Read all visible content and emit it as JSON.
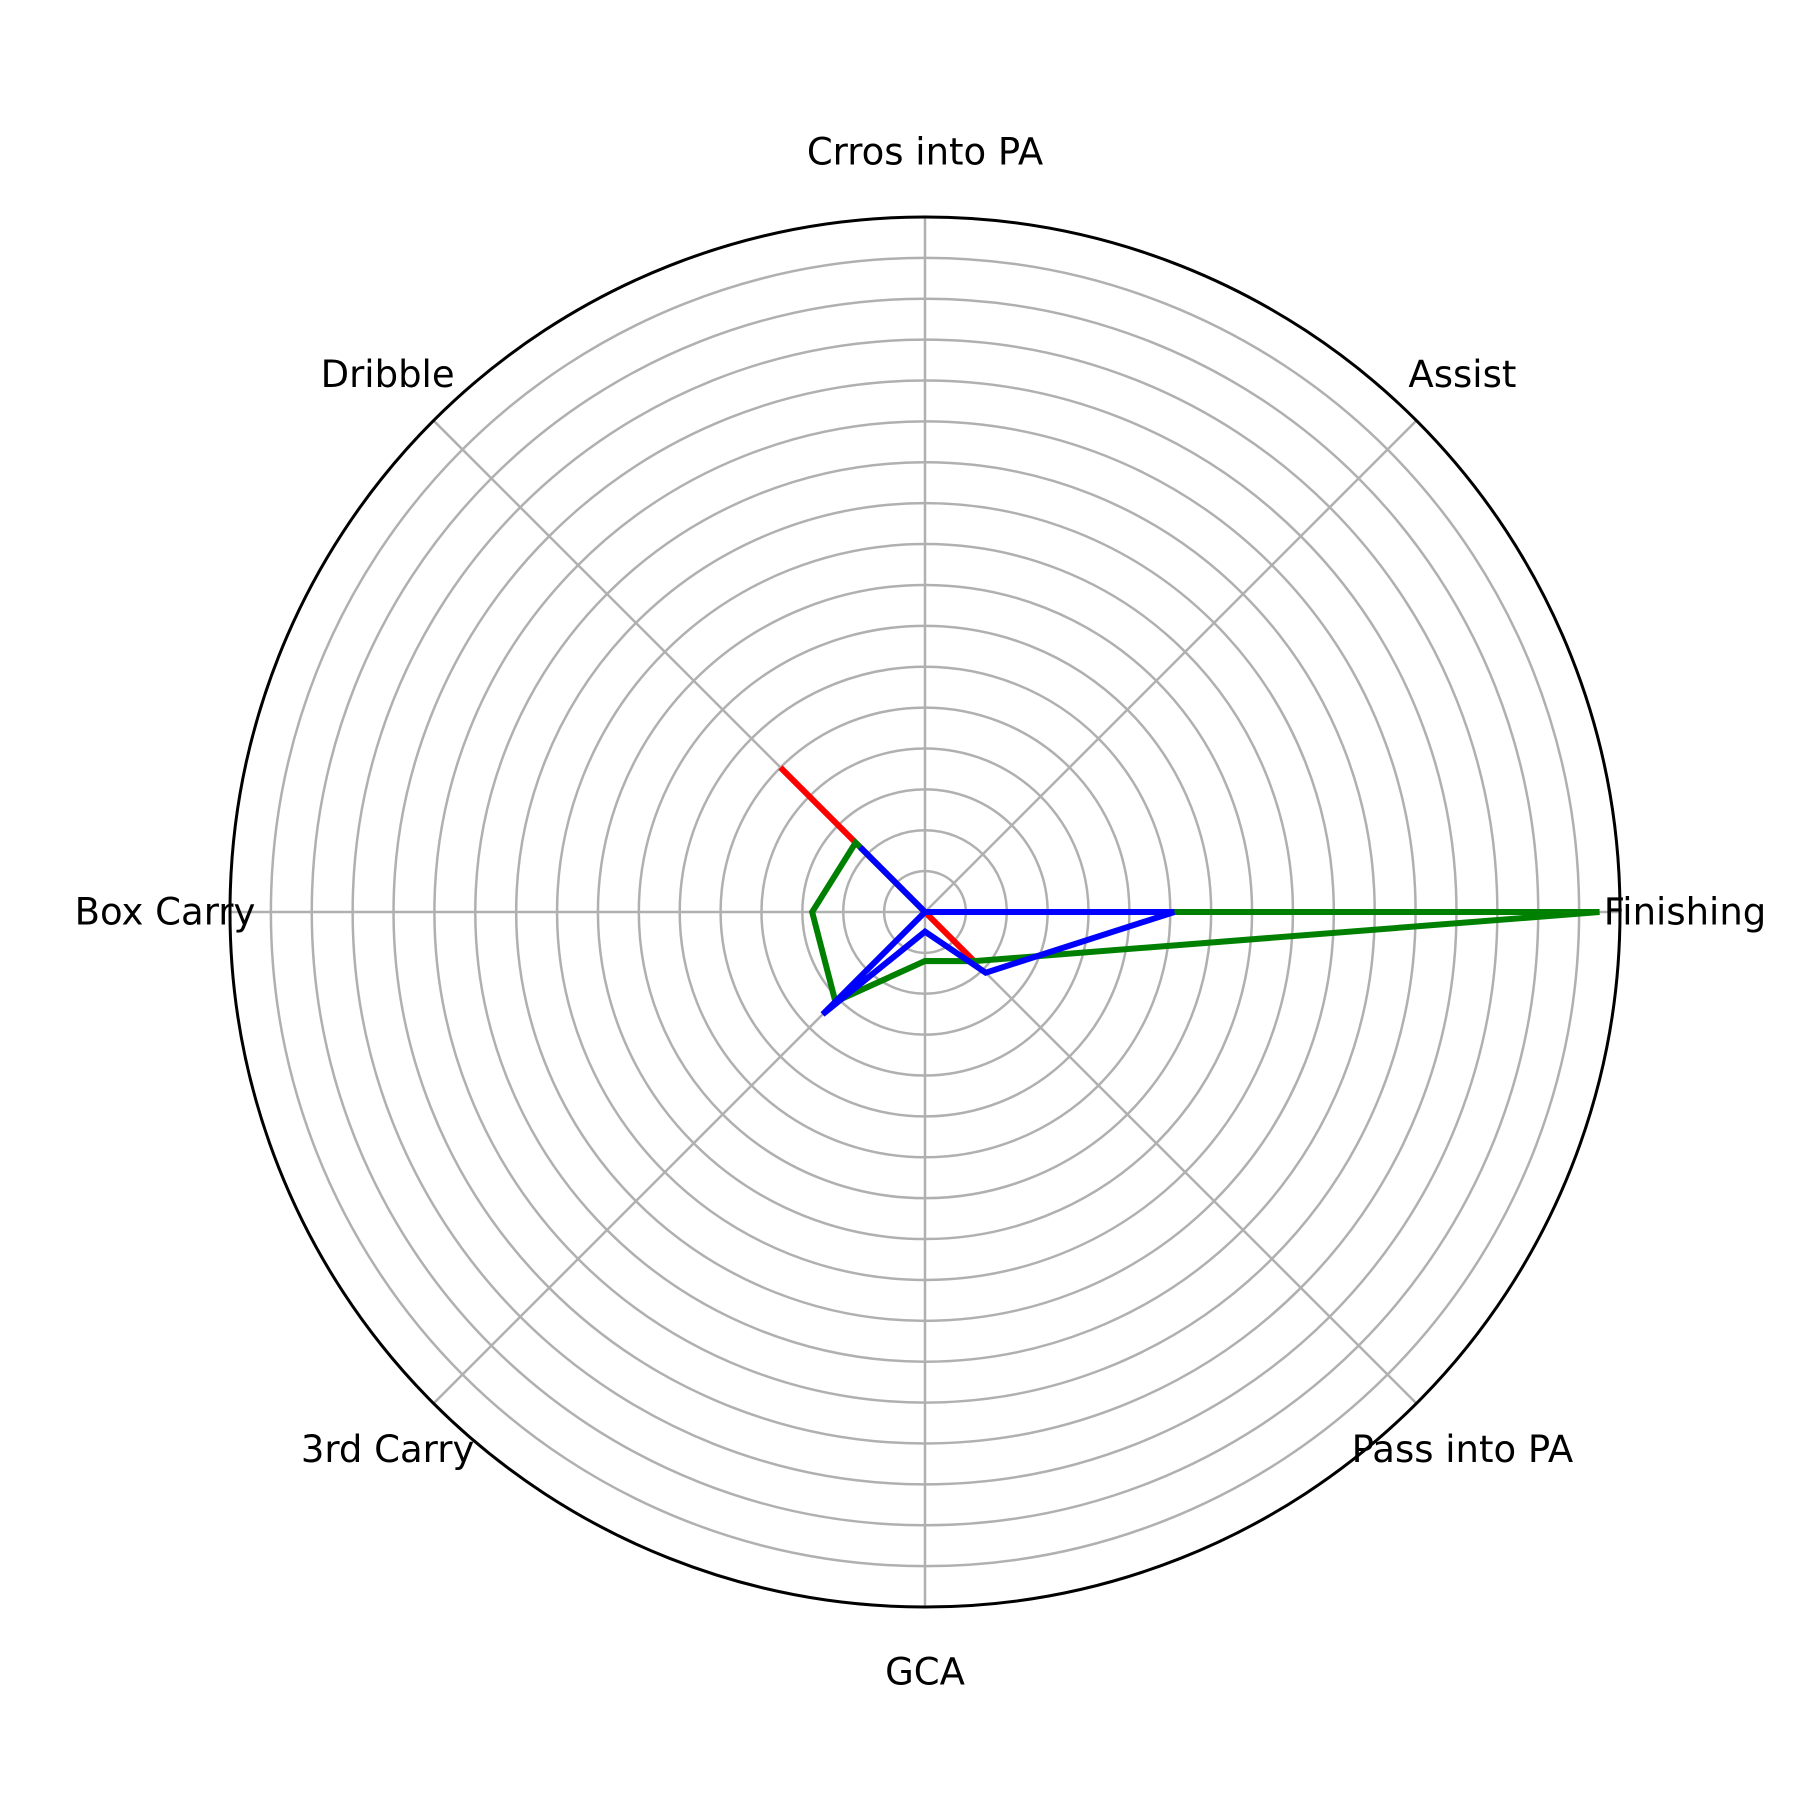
{
  "chart_data": {
    "type": "radar",
    "title": "",
    "categories": [
      "Finishing",
      "Assist",
      "Crros into PA",
      "Dribble",
      "Box Carry",
      "3rd Carry",
      "GCA",
      "Pass into PA"
    ],
    "rlim": [
      0,
      8.5
    ],
    "rticks": [
      0.5,
      1,
      1.5,
      2,
      2.5,
      3,
      3.5,
      4,
      4.5,
      5,
      5.5,
      6,
      6.5,
      7,
      7.5,
      8,
      8.5
    ],
    "grid": true,
    "legend": "none",
    "series": [
      {
        "name": "series-red",
        "color": "#ff0000",
        "values": [
          0,
          0,
          0,
          2.5,
          0,
          0,
          0,
          0.85
        ]
      },
      {
        "name": "series-green",
        "color": "#008000",
        "values": [
          8.25,
          0,
          0,
          1.2,
          1.38,
          1.55,
          0.6,
          0.85
        ]
      },
      {
        "name": "series-blue",
        "color": "#0000ff",
        "values": [
          3.05,
          0,
          0,
          1.12,
          0,
          1.77,
          0.24,
          1.05
        ]
      }
    ]
  }
}
